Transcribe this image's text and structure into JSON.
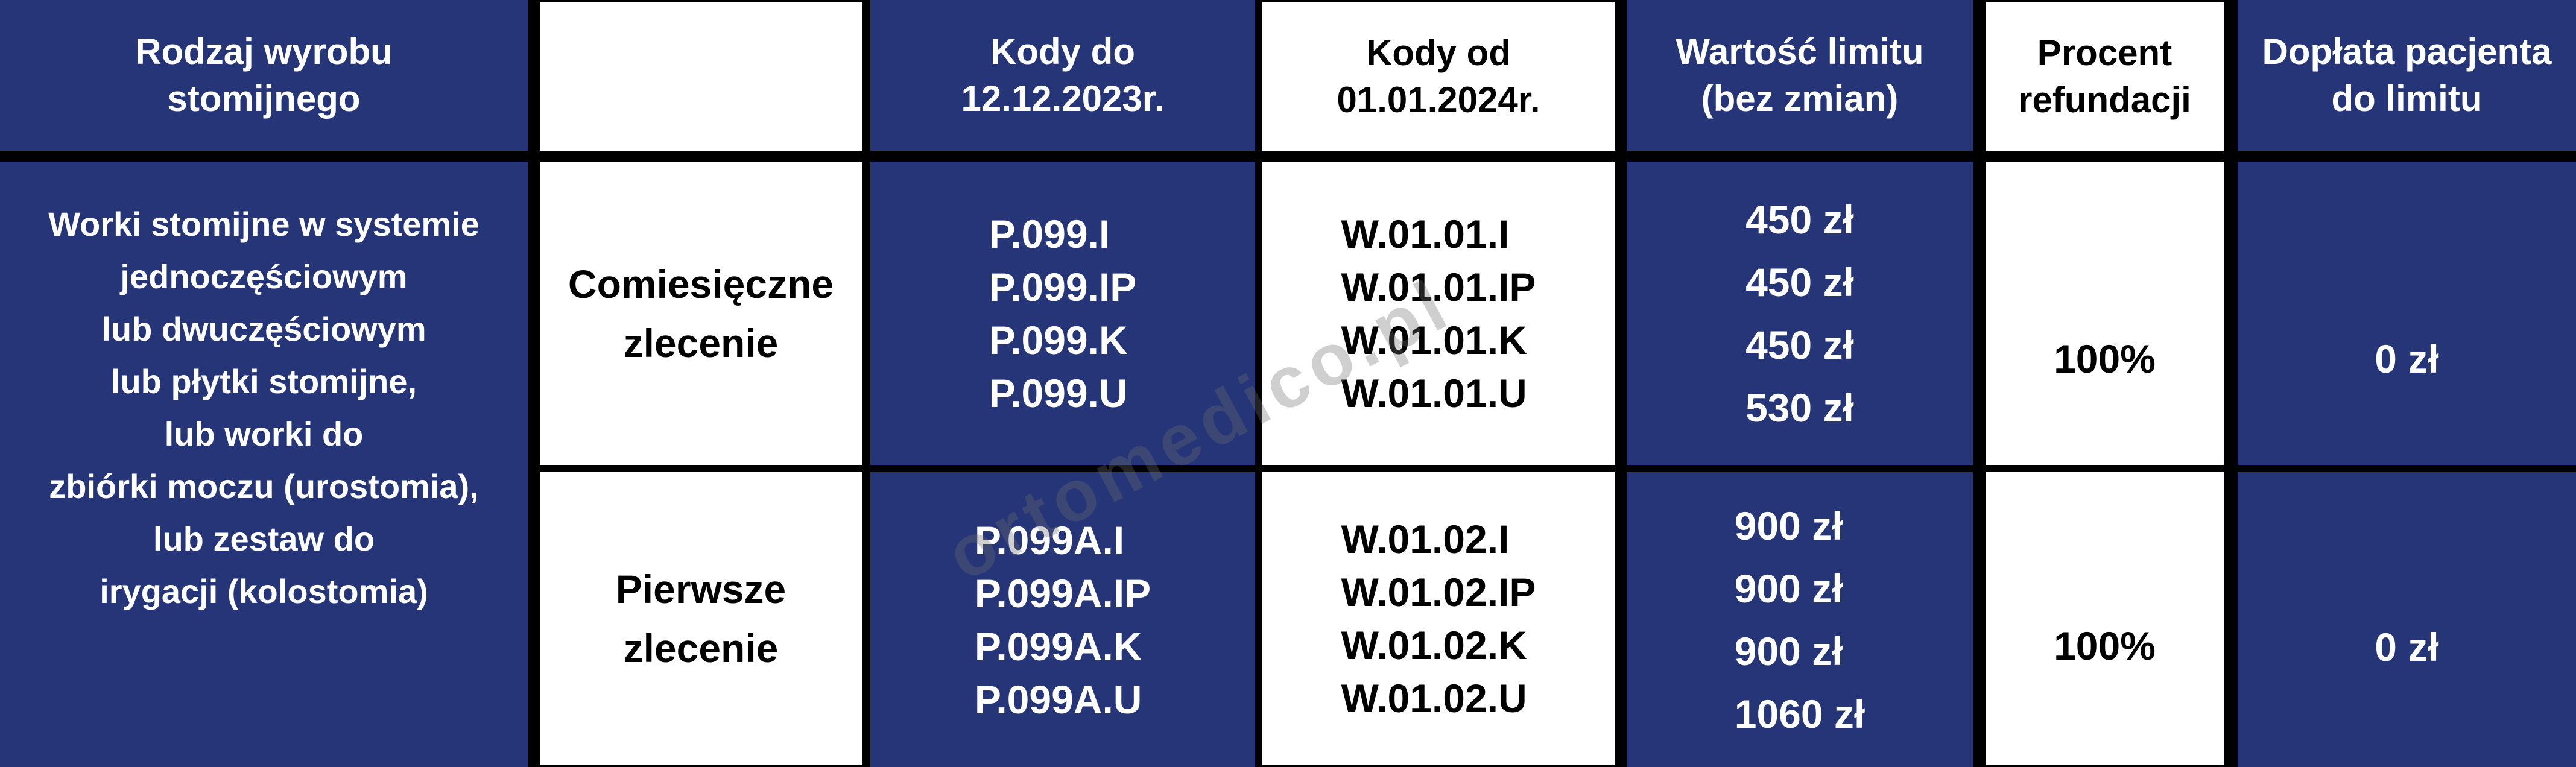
{
  "colors": {
    "navy_cell": "#253578",
    "white_cell": "#ffffff",
    "grid_border": "#000000",
    "navy_cell_text": "#ffffff",
    "white_cell_text": "#000000",
    "watermark_gray": "#6e6e6e"
  },
  "watermark": {
    "text": "ortomedico.pl"
  },
  "table": {
    "headers": {
      "product_type": [
        "Rodzaj wyrobu",
        "stomijnego"
      ],
      "order_type": "",
      "codes_until": [
        "Kody do",
        "12.12.2023r."
      ],
      "codes_from": [
        "Kody od",
        "01.01.2024r."
      ],
      "limit_value": [
        "Wartość limitu",
        "(bez zmian)"
      ],
      "refund_percent": [
        "Procent",
        "refundacji"
      ],
      "patient_copay": [
        "Dopłata pacjenta",
        "do limitu"
      ]
    },
    "product_description": [
      "Worki stomijne w systemie",
      "jednoczęściowym",
      "lub dwuczęściowym",
      "lub płytki stomijne,",
      "lub worki do",
      "zbiórki moczu (urostomia),",
      "lub zestaw do",
      "irygacji (kolostomia)"
    ],
    "rows": [
      {
        "order_type": [
          "Comiesięczne",
          "zlecenie"
        ],
        "codes_until": [
          "P.099.I",
          "P.099.IP",
          "P.099.K",
          "P.099.U"
        ],
        "codes_from": [
          "W.01.01.I",
          "W.01.01.IP",
          "W.01.01.K",
          "W.01.01.U"
        ],
        "limit_values": [
          "450 zł",
          "450 zł",
          "450 zł",
          "530 zł"
        ],
        "refund_percent": "100%",
        "patient_copay": "0 zł"
      },
      {
        "order_type": [
          "Pierwsze",
          "zlecenie"
        ],
        "codes_until": [
          "P.099A.I",
          "P.099A.IP",
          "P.099A.K",
          "P.099A.U"
        ],
        "codes_from": [
          "W.01.02.I",
          "W.01.02.IP",
          "W.01.02.K",
          "W.01.02.U"
        ],
        "limit_values": [
          "900 zł",
          "900 zł",
          "900 zł",
          "1060 zł"
        ],
        "refund_percent": "100%",
        "patient_copay": "0 zł"
      }
    ]
  }
}
